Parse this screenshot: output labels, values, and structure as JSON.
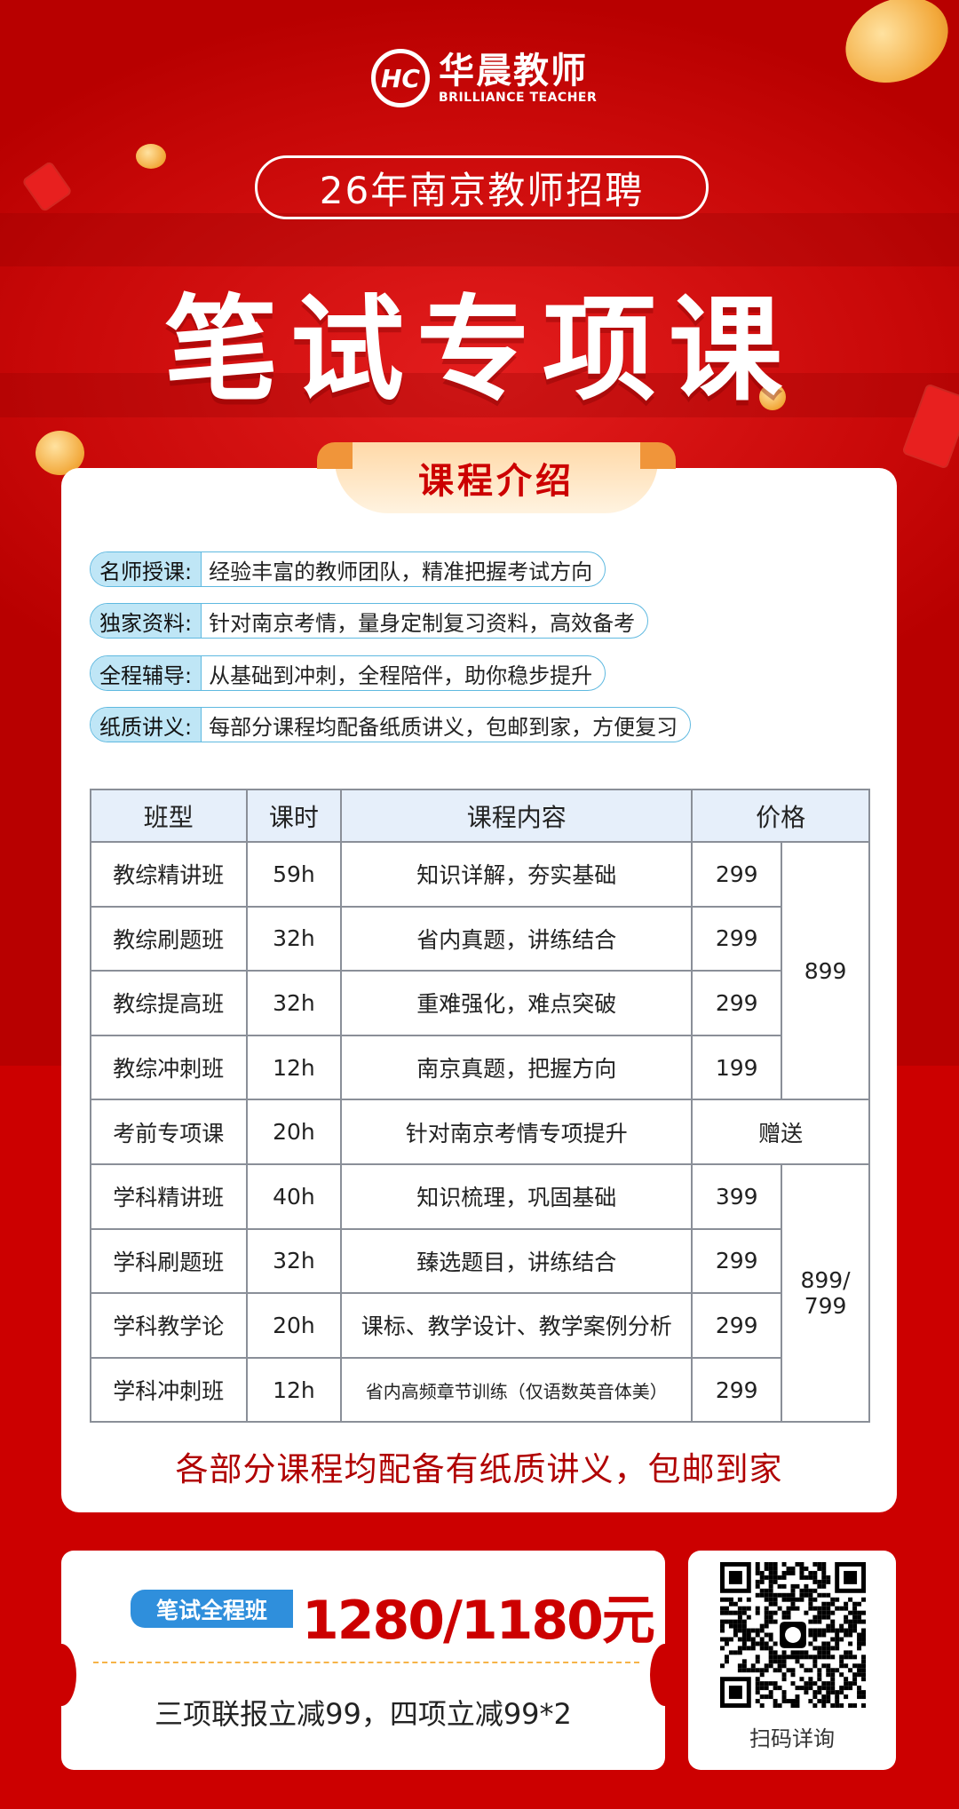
{
  "brand": {
    "logo_mark": "HC",
    "name_cn": "华晨教师",
    "name_en": "BRILLIANCE TEACHER"
  },
  "header": {
    "subtitle": "26年南京教师招聘",
    "title": "笔试专项课"
  },
  "intro": {
    "heading": "课程介绍",
    "features": [
      {
        "tag": "名师授课:",
        "text": "经验丰富的教师团队，精准把握考试方向"
      },
      {
        "tag": "独家资料:",
        "text": "针对南京考情，量身定制复习资料，高效备考"
      },
      {
        "tag": "全程辅导:",
        "text": "从基础到冲刺，全程陪伴，助你稳步提升"
      },
      {
        "tag": "纸质讲义:",
        "text": "每部分课程均配备纸质讲义，包邮到家，方便复习"
      }
    ]
  },
  "table": {
    "headers": [
      "班型",
      "课时",
      "课程内容",
      "价格"
    ],
    "rows": [
      {
        "name": "教综精讲班",
        "hours": "59h",
        "content": "知识详解，夯实基础",
        "price": "299"
      },
      {
        "name": "教综刷题班",
        "hours": "32h",
        "content": "省内真题，讲练结合",
        "price": "299"
      },
      {
        "name": "教综提高班",
        "hours": "32h",
        "content": "重难强化，难点突破",
        "price": "299"
      },
      {
        "name": "教综冲刺班",
        "hours": "12h",
        "content": "南京真题，把握方向",
        "price": "199"
      },
      {
        "name": "考前专项课",
        "hours": "20h",
        "content": "针对南京考情专项提升",
        "price": "赠送"
      },
      {
        "name": "学科精讲班",
        "hours": "40h",
        "content": "知识梳理，巩固基础",
        "price": "399"
      },
      {
        "name": "学科刷题班",
        "hours": "32h",
        "content": "臻选题目，讲练结合",
        "price": "299"
      },
      {
        "name": "学科教学论",
        "hours": "20h",
        "content": "课标、教学设计、教学案例分析",
        "price": "299"
      },
      {
        "name": "学科冲刺班",
        "hours": "12h",
        "content": "省内高频章节训练（仅语数英音体美）",
        "price": "299"
      }
    ],
    "bundle_jiaozong": "899",
    "bundle_xueke_1": "899/",
    "bundle_xueke_2": "799"
  },
  "note": "各部分课程均配备有纸质讲义，包邮到家",
  "offer": {
    "badge": "笔试全程班",
    "price": "1280/1180元",
    "discount": "三项联报立减99，四项立减99*2"
  },
  "qr": {
    "label": "扫码详询",
    "center_icon": "wechat-icon"
  },
  "colors": {
    "brand_red": "#cc0000",
    "accent_blue": "#2f8fdc",
    "tag_blue": "#bfe6f6",
    "header_blue": "#e6effa"
  }
}
